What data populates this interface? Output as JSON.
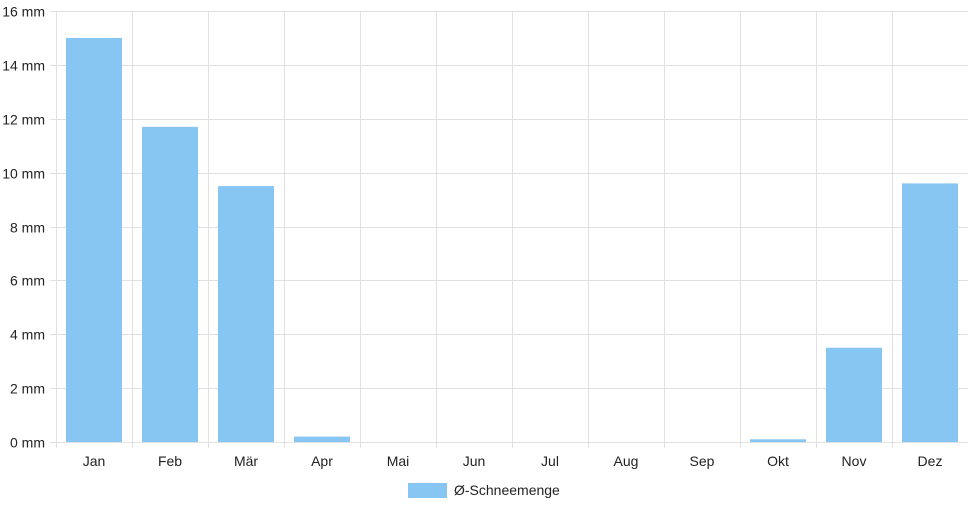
{
  "chart_data": {
    "type": "bar",
    "categories": [
      "Jan",
      "Feb",
      "Mär",
      "Apr",
      "Mai",
      "Jun",
      "Jul",
      "Aug",
      "Sep",
      "Okt",
      "Nov",
      "Dez"
    ],
    "series": [
      {
        "name": "Ø-Schneemenge",
        "values": [
          15.0,
          11.7,
          9.5,
          0.2,
          0,
          0,
          0,
          0,
          0,
          0.1,
          3.5,
          9.6
        ]
      }
    ],
    "title": "",
    "xlabel": "",
    "ylabel": "",
    "ylim": [
      0,
      16
    ],
    "y_ticks": [
      {
        "value": 0,
        "label": "0 mm"
      },
      {
        "value": 2,
        "label": "2 mm"
      },
      {
        "value": 4,
        "label": "4 mm"
      },
      {
        "value": 6,
        "label": "6 mm"
      },
      {
        "value": 8,
        "label": "8 mm"
      },
      {
        "value": 10,
        "label": "10 mm"
      },
      {
        "value": 12,
        "label": "12 mm"
      },
      {
        "value": 14,
        "label": "14 mm"
      },
      {
        "value": 16,
        "label": "16 mm"
      }
    ],
    "grid": true,
    "legend_position": "bottom",
    "bar_color": "#87c5f2"
  }
}
